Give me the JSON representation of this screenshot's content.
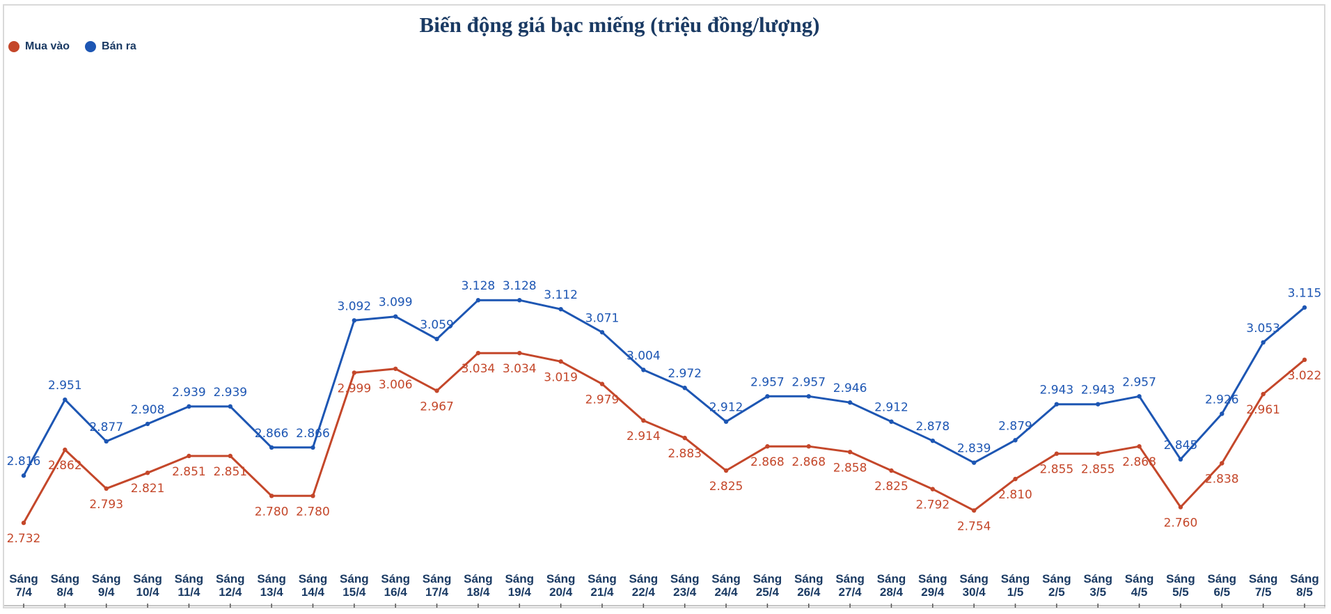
{
  "chart_data": {
    "type": "line",
    "title": "Biến động giá bạc miếng (triệu đồng/lượng)",
    "xlabel": "",
    "ylabel": "",
    "ylim": [
      2.3,
      3.6
    ],
    "grid": false,
    "legend_position": "top-left",
    "categories": [
      {
        "line1": "Sáng",
        "line2": "7/4"
      },
      {
        "line1": "Sáng",
        "line2": "8/4"
      },
      {
        "line1": "Sáng",
        "line2": "9/4"
      },
      {
        "line1": "Sáng",
        "line2": "10/4"
      },
      {
        "line1": "Sáng",
        "line2": "11/4"
      },
      {
        "line1": "Sáng",
        "line2": "12/4"
      },
      {
        "line1": "Sáng",
        "line2": "13/4"
      },
      {
        "line1": "Sáng",
        "line2": "14/4"
      },
      {
        "line1": "Sáng",
        "line2": "15/4"
      },
      {
        "line1": "Sáng",
        "line2": "16/4"
      },
      {
        "line1": "Sáng",
        "line2": "17/4"
      },
      {
        "line1": "Sáng",
        "line2": "18/4"
      },
      {
        "line1": "Sáng",
        "line2": "19/4"
      },
      {
        "line1": "Sáng",
        "line2": "20/4"
      },
      {
        "line1": "Sáng",
        "line2": "21/4"
      },
      {
        "line1": "Sáng",
        "line2": "22/4"
      },
      {
        "line1": "Sáng",
        "line2": "23/4"
      },
      {
        "line1": "Sáng",
        "line2": "24/4"
      },
      {
        "line1": "Sáng",
        "line2": "25/4"
      },
      {
        "line1": "Sáng",
        "line2": "26/4"
      },
      {
        "line1": "Sáng",
        "line2": "27/4"
      },
      {
        "line1": "Sáng",
        "line2": "28/4"
      },
      {
        "line1": "Sáng",
        "line2": "29/4"
      },
      {
        "line1": "Sáng",
        "line2": "30/4"
      },
      {
        "line1": "Sáng",
        "line2": "1/5"
      },
      {
        "line1": "Sáng",
        "line2": "2/5"
      },
      {
        "line1": "Sáng",
        "line2": "3/5"
      },
      {
        "line1": "Sáng",
        "line2": "4/5"
      },
      {
        "line1": "Sáng",
        "line2": "5/5"
      },
      {
        "line1": "Sáng",
        "line2": "6/5"
      },
      {
        "line1": "Sáng",
        "line2": "7/5"
      },
      {
        "line1": "Sáng",
        "line2": "8/5"
      }
    ],
    "series": [
      {
        "name": "Mua vào",
        "color": "#c4472a",
        "label_position": "below",
        "values": [
          2.732,
          2.862,
          2.793,
          2.821,
          2.851,
          2.851,
          2.78,
          2.78,
          2.999,
          3.006,
          2.967,
          3.034,
          3.034,
          3.019,
          2.979,
          2.914,
          2.883,
          2.825,
          2.868,
          2.868,
          2.858,
          2.825,
          2.792,
          2.754,
          2.81,
          2.855,
          2.855,
          2.868,
          2.76,
          2.838,
          2.961,
          3.022
        ],
        "labels": [
          "2.732",
          "2.862",
          "2.793",
          "2.821",
          "2.851",
          "2.851",
          "2.780",
          "2.780",
          "2.999",
          "3.006",
          "2.967",
          "3.034",
          "3.034",
          "3.019",
          "2.979",
          "2.914",
          "2.883",
          "2.825",
          "2.868",
          "2.868",
          "2.858",
          "2.825",
          "2.792",
          "2.754",
          "2.810",
          "2.855",
          "2.855",
          "2.868",
          "2.760",
          "2.838",
          "2.961",
          "3.022"
        ]
      },
      {
        "name": "Bán ra",
        "color": "#1d56b3",
        "label_position": "above",
        "values": [
          2.816,
          2.951,
          2.877,
          2.908,
          2.939,
          2.939,
          2.866,
          2.866,
          3.092,
          3.099,
          3.059,
          3.128,
          3.128,
          3.112,
          3.071,
          3.004,
          2.972,
          2.912,
          2.957,
          2.957,
          2.946,
          2.912,
          2.878,
          2.839,
          2.879,
          2.943,
          2.943,
          2.957,
          2.845,
          2.926,
          3.053,
          3.115
        ],
        "labels": [
          "2.816",
          "2.951",
          "2.877",
          "2.908",
          "2.939",
          "2.939",
          "2.866",
          "2.866",
          "3.092",
          "3.099",
          "3.059",
          "3.128",
          "3.128",
          "3.112",
          "3.071",
          "3.004",
          "2.972",
          "2.912",
          "2.957",
          "2.957",
          "2.946",
          "2.912",
          "2.878",
          "2.839",
          "2.879",
          "2.943",
          "2.943",
          "2.957",
          "2.845",
          "2.926",
          "3.053",
          "3.115"
        ]
      }
    ]
  }
}
